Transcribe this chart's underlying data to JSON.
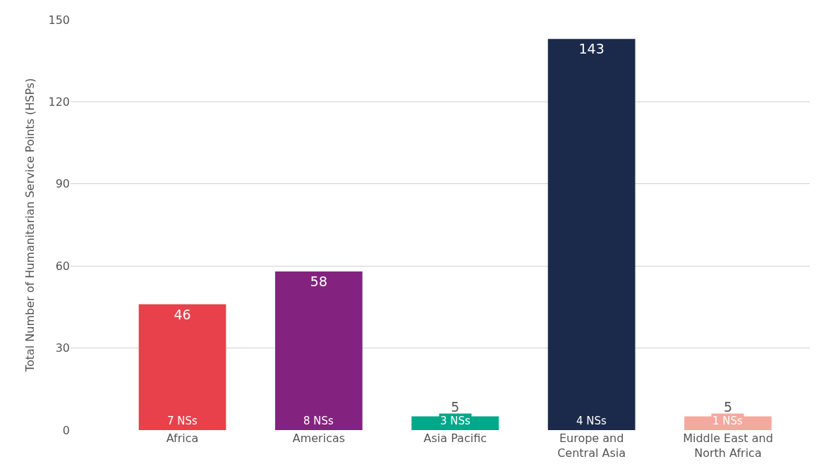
{
  "chart_data": {
    "type": "bar",
    "ylabel": "Total Number of Humanitarian Service Points (HSPs)",
    "categories": [
      "Africa",
      "Americas",
      "Asia Pacific",
      "Europe and Central Asia",
      "Middle East and North Africa"
    ],
    "values": [
      46,
      58,
      5,
      143,
      5
    ],
    "colors": [
      "#e8414b",
      "#84237f",
      "#00a88a",
      "#1b2a4a",
      "#f4a99e"
    ],
    "ylim": [
      0,
      150
    ],
    "yticks": [
      0,
      30,
      60,
      90,
      120,
      150
    ],
    "grid": "y",
    "data_labels": true,
    "annotations": [
      {
        "text": "7 NSs",
        "x": "Africa",
        "y": 0
      },
      {
        "text": "8 NSs",
        "x": "Americas",
        "y": 0
      },
      {
        "text": "3 NSs",
        "x": "Asia Pacific",
        "y": 0
      },
      {
        "text": "4 NSs",
        "x": "Europe and Central Asia",
        "y": 0
      },
      {
        "text": "1 NSs",
        "x": "Middle East and North Africa",
        "y": 0
      }
    ]
  }
}
